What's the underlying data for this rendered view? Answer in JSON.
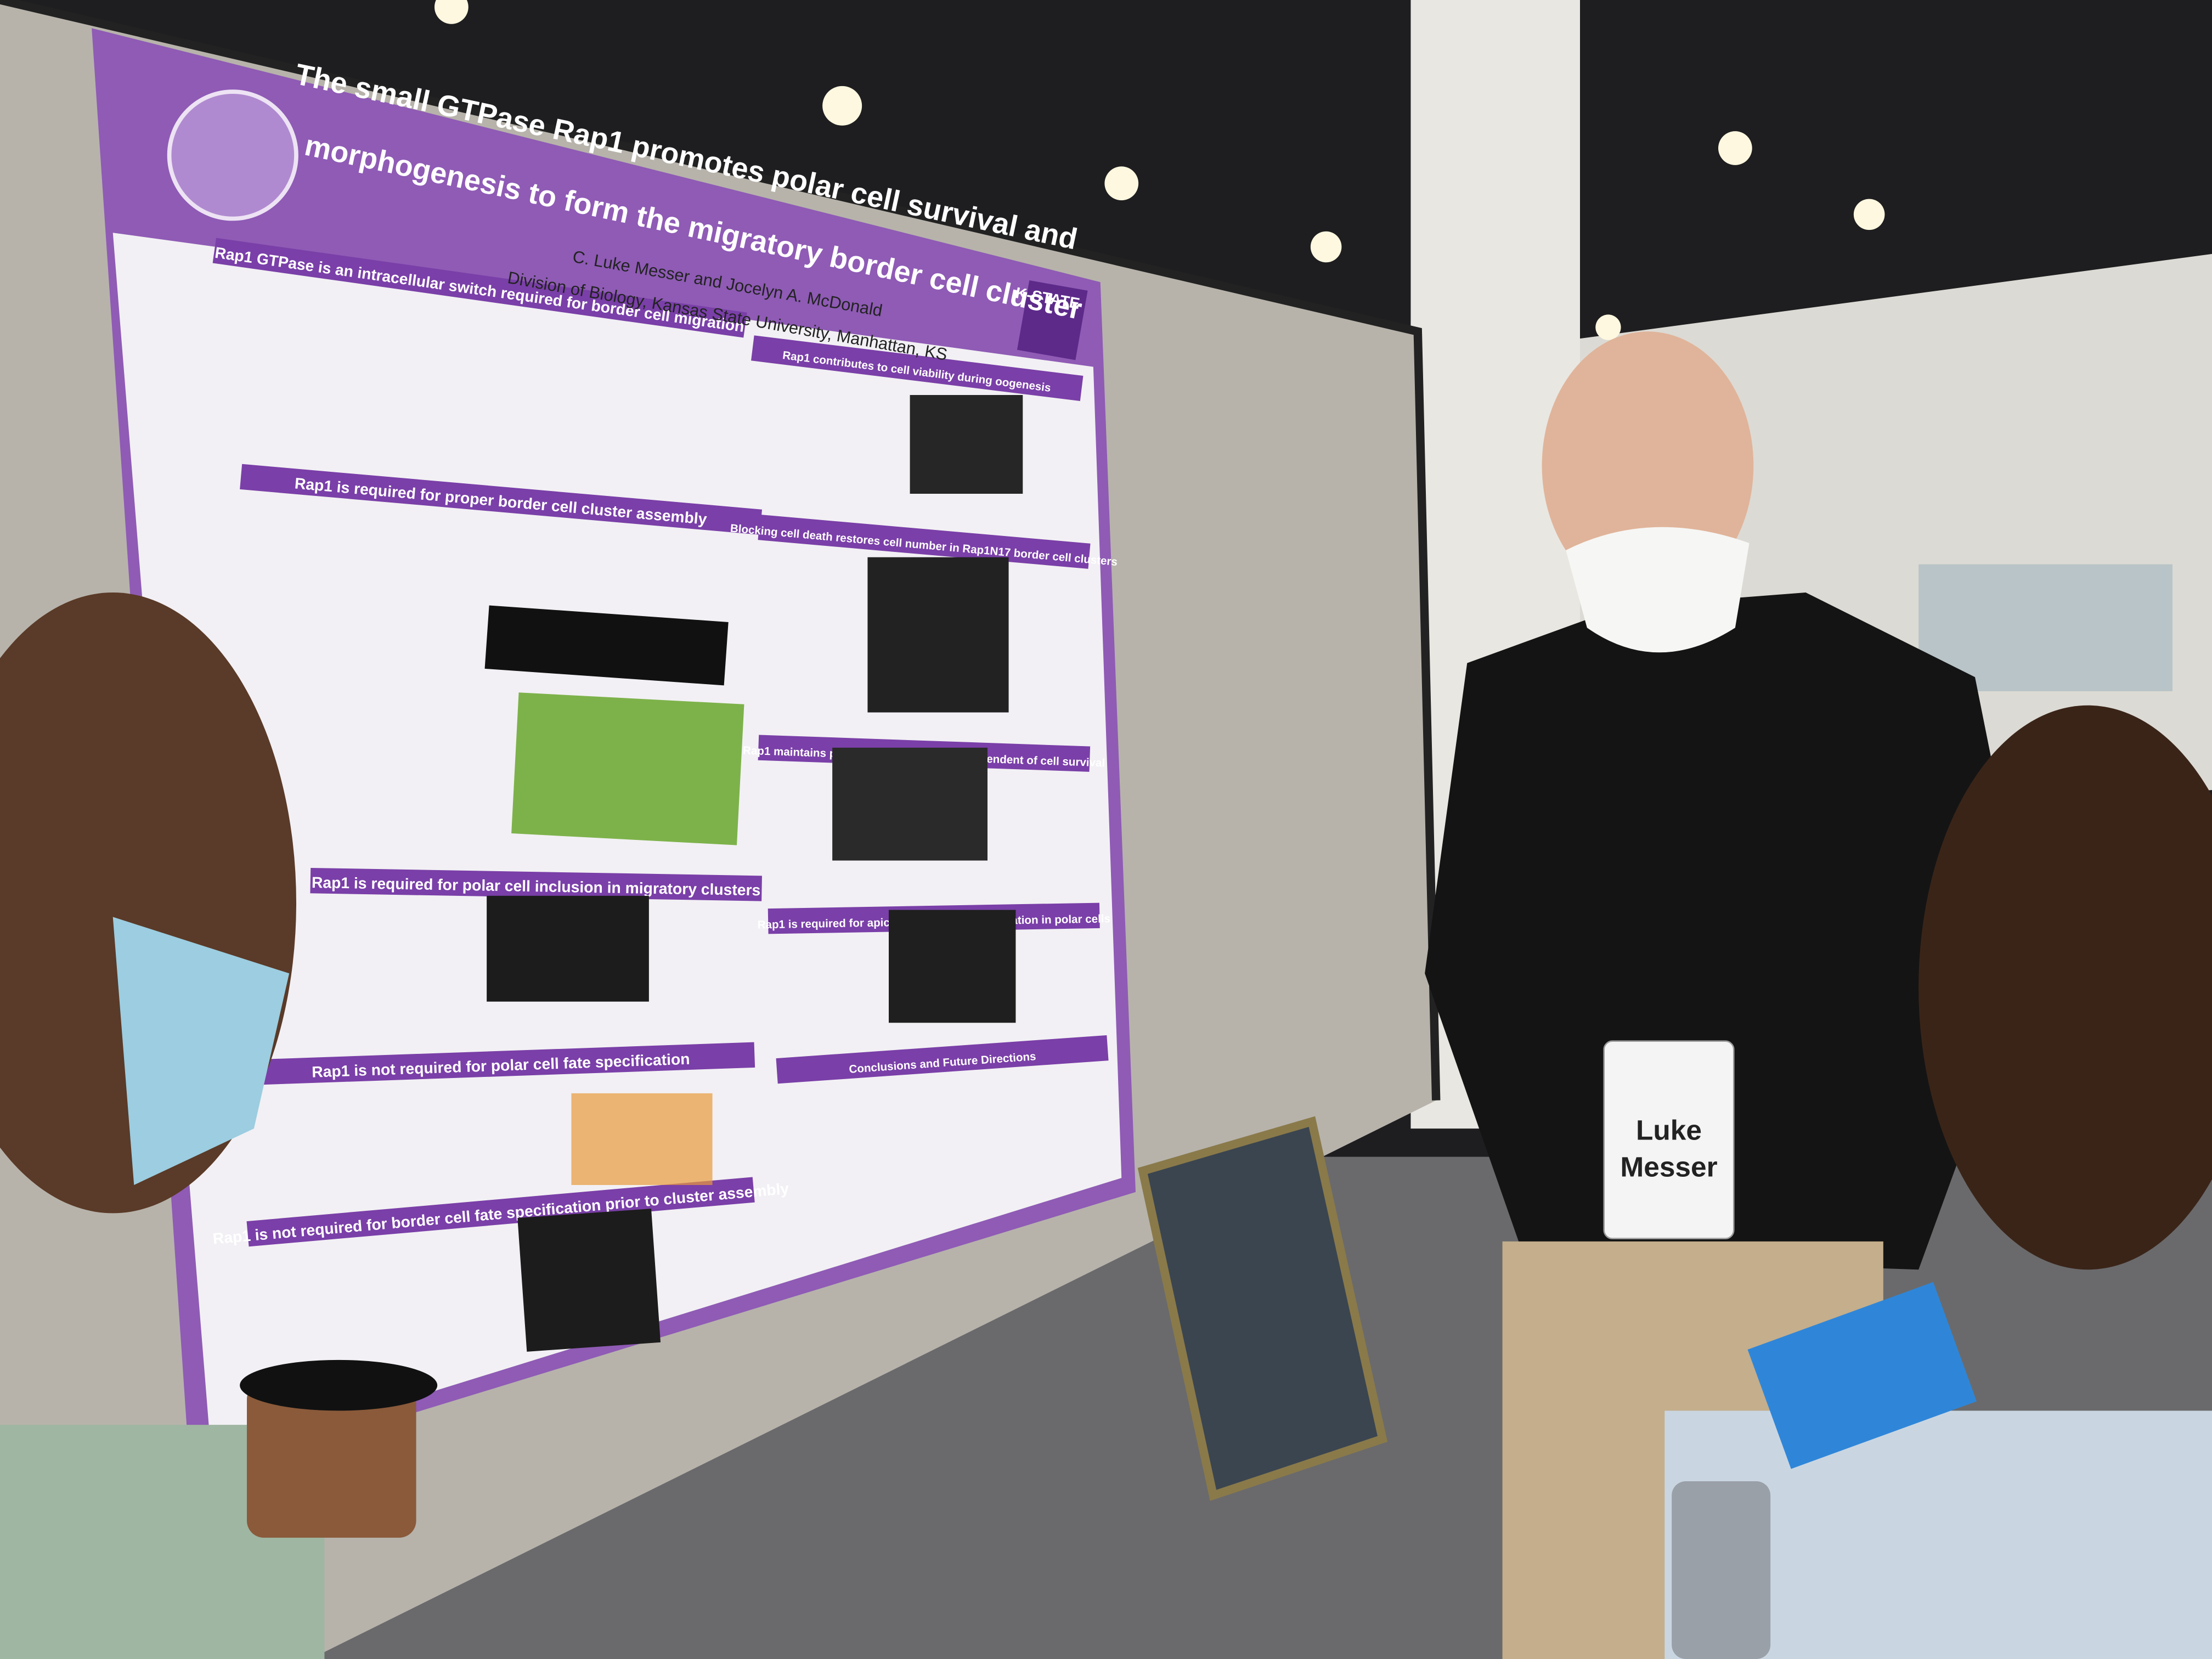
{
  "poster": {
    "title_lines": [
      "The small GTPase Rap1 promotes polar cell survival and",
      "morphogenesis to form the migratory border cell cluster"
    ],
    "authors": "C. Luke Messer and Jocelyn A. McDonald",
    "affiliation": "Division of Biology, Kansas State University, Manhattan, KS",
    "logo": "K-STATE",
    "sections": [
      "Rap1 GTPase is an intracellular switch required for border cell migration",
      "Rap1 is required for proper border cell cluster assembly",
      "Rap1 is required for polar cell inclusion in migratory clusters",
      "Rap1 is not required for polar cell fate specification",
      "Rap1 is not required for border cell fate specification prior to cluster assembly",
      "Rap1 contributes to cell viability during oogenesis",
      "Blocking cell death restores cell number in Rap1N17 border cell clusters",
      "Rap1 maintains proper polar cell shape independent of cell survival",
      "Rap1 is required for apical E-Cadherin accumulation in polar cells",
      "Conclusions and Future Directions"
    ]
  },
  "badge": {
    "first_name": "Luke",
    "last_name": "Messer"
  }
}
